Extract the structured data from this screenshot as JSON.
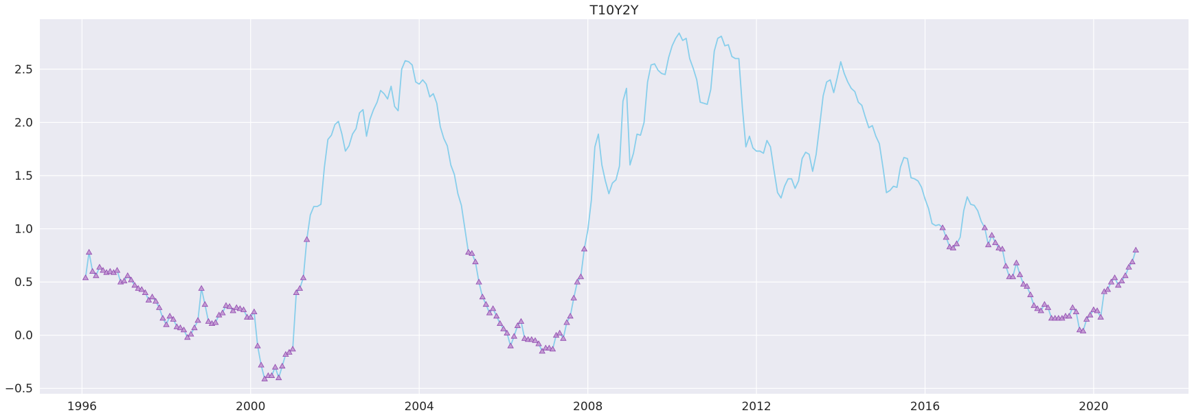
{
  "chart_data": {
    "type": "line",
    "title": "T10Y2Y",
    "xlabel": "",
    "ylabel": "",
    "x_axis": "date",
    "xlim": [
      "1995-01-01",
      "2022-04-01"
    ],
    "ylim": [
      -0.55,
      2.97
    ],
    "xticks": [
      "1996",
      "2000",
      "2004",
      "2008",
      "2012",
      "2016",
      "2020"
    ],
    "yticks": [
      "−0.5",
      "0.0",
      "0.5",
      "1.0",
      "1.5",
      "2.0",
      "2.5"
    ],
    "ytick_values": [
      -0.5,
      0.0,
      0.5,
      1.0,
      1.5,
      2.0,
      2.5
    ],
    "grid": true,
    "legend": "none",
    "line_color": "#87ceeb",
    "marker": "triangle",
    "marker_fill": "#c39bd3",
    "marker_edge": "#8e44ad",
    "background": "#eaeaf2",
    "series": [
      {
        "x": [
          "1996-02",
          "1996-03",
          "1996-04",
          "1996-05",
          "1996-06",
          "1996-07",
          "1996-08",
          "1996-09",
          "1996-10",
          "1996-11",
          "1996-12",
          "1997-01",
          "1997-02",
          "1997-03",
          "1997-04",
          "1997-05",
          "1997-06",
          "1997-07",
          "1997-08",
          "1997-09",
          "1997-10",
          "1997-11",
          "1997-12",
          "1998-01",
          "1998-02",
          "1998-03",
          "1998-04",
          "1998-05",
          "1998-06",
          "1998-07",
          "1998-08",
          "1998-09",
          "1998-10",
          "1998-11",
          "1998-12",
          "1999-01",
          "1999-02",
          "1999-03",
          "1999-04",
          "1999-05",
          "1999-06",
          "1999-07",
          "1999-08",
          "1999-09",
          "1999-10",
          "1999-11",
          "1999-12",
          "2000-01",
          "2000-02",
          "2000-03",
          "2000-04",
          "2000-05",
          "2000-06",
          "2000-07",
          "2000-08",
          "2000-09",
          "2000-10",
          "2000-11",
          "2000-12",
          "2001-01",
          "2001-02",
          "2001-03",
          "2001-04",
          "2001-05",
          "2001-06",
          "2001-07",
          "2001-08",
          "2001-09",
          "2001-10",
          "2001-11",
          "2001-12",
          "2002-01",
          "2002-02",
          "2002-03",
          "2002-04",
          "2002-05",
          "2002-06",
          "2002-07",
          "2002-08",
          "2002-09",
          "2002-10",
          "2002-11",
          "2002-12",
          "2003-01",
          "2003-02",
          "2003-03",
          "2003-04",
          "2003-05",
          "2003-06",
          "2003-07",
          "2003-08",
          "2003-09",
          "2003-10",
          "2003-11",
          "2003-12",
          "2004-01",
          "2004-02",
          "2004-03",
          "2004-04",
          "2004-05",
          "2004-06",
          "2004-07",
          "2004-08",
          "2004-09",
          "2004-10",
          "2004-11",
          "2004-12",
          "2005-01",
          "2005-02",
          "2005-03",
          "2005-04",
          "2005-05",
          "2005-06",
          "2005-07",
          "2005-08",
          "2005-09",
          "2005-10",
          "2005-11",
          "2005-12",
          "2006-01",
          "2006-02",
          "2006-03",
          "2006-04",
          "2006-05",
          "2006-06",
          "2006-07",
          "2006-08",
          "2006-09",
          "2006-10",
          "2006-11",
          "2006-12",
          "2007-01",
          "2007-02",
          "2007-03",
          "2007-04",
          "2007-05",
          "2007-06",
          "2007-07",
          "2007-08",
          "2007-09",
          "2007-10",
          "2007-11",
          "2007-12",
          "2008-01",
          "2008-02",
          "2008-03",
          "2008-04",
          "2008-05",
          "2008-06",
          "2008-07",
          "2008-08",
          "2008-09",
          "2008-10",
          "2008-11",
          "2008-12",
          "2009-01",
          "2009-02",
          "2009-03",
          "2009-04",
          "2009-05",
          "2009-06",
          "2009-07",
          "2009-08",
          "2009-09",
          "2009-10",
          "2009-11",
          "2009-12",
          "2010-01",
          "2010-02",
          "2010-03",
          "2010-04",
          "2010-05",
          "2010-06",
          "2010-07",
          "2010-08",
          "2010-09",
          "2010-10",
          "2010-11",
          "2010-12",
          "2011-01",
          "2011-02",
          "2011-03",
          "2011-04",
          "2011-05",
          "2011-06",
          "2011-07",
          "2011-08",
          "2011-09",
          "2011-10",
          "2011-11",
          "2011-12",
          "2012-01",
          "2012-02",
          "2012-03",
          "2012-04",
          "2012-05",
          "2012-06",
          "2012-07",
          "2012-08",
          "2012-09",
          "2012-10",
          "2012-11",
          "2012-12",
          "2013-01",
          "2013-02",
          "2013-03",
          "2013-04",
          "2013-05",
          "2013-06",
          "2013-07",
          "2013-08",
          "2013-09",
          "2013-10",
          "2013-11",
          "2013-12",
          "2014-01",
          "2014-02",
          "2014-03",
          "2014-04",
          "2014-05",
          "2014-06",
          "2014-07",
          "2014-08",
          "2014-09",
          "2014-10",
          "2014-11",
          "2014-12",
          "2015-01",
          "2015-02",
          "2015-03",
          "2015-04",
          "2015-05",
          "2015-06",
          "2015-07",
          "2015-08",
          "2015-09",
          "2015-10",
          "2015-11",
          "2015-12",
          "2016-01",
          "2016-02",
          "2016-03",
          "2016-04",
          "2016-05",
          "2016-06",
          "2016-07",
          "2016-08",
          "2016-09",
          "2016-10",
          "2016-11",
          "2016-12",
          "2017-01",
          "2017-02",
          "2017-03",
          "2017-04",
          "2017-05",
          "2017-06",
          "2017-07",
          "2017-08",
          "2017-09",
          "2017-10",
          "2017-11",
          "2017-12",
          "2018-01",
          "2018-02",
          "2018-03",
          "2018-04",
          "2018-05",
          "2018-06",
          "2018-07",
          "2018-08",
          "2018-09",
          "2018-10",
          "2018-11",
          "2018-12",
          "2019-01",
          "2019-02",
          "2019-03",
          "2019-04",
          "2019-05",
          "2019-06",
          "2019-07",
          "2019-08",
          "2019-09",
          "2019-10",
          "2019-11",
          "2019-12",
          "2020-01",
          "2020-02",
          "2020-03",
          "2020-04",
          "2020-05",
          "2020-06",
          "2020-07",
          "2020-08",
          "2020-09",
          "2020-10",
          "2020-11",
          "2020-12",
          "2021-01"
        ],
        "y": [
          0.54,
          0.78,
          0.6,
          0.56,
          0.64,
          0.61,
          0.59,
          0.6,
          0.59,
          0.61,
          0.5,
          0.51,
          0.56,
          0.52,
          0.47,
          0.44,
          0.43,
          0.4,
          0.33,
          0.36,
          0.32,
          0.26,
          0.16,
          0.1,
          0.18,
          0.15,
          0.08,
          0.07,
          0.05,
          -0.02,
          0.01,
          0.07,
          0.14,
          0.44,
          0.29,
          0.13,
          0.11,
          0.12,
          0.19,
          0.21,
          0.28,
          0.27,
          0.23,
          0.26,
          0.25,
          0.24,
          0.17,
          0.17,
          0.22,
          -0.1,
          -0.28,
          -0.41,
          -0.38,
          -0.38,
          -0.3,
          -0.4,
          -0.29,
          -0.18,
          -0.16,
          -0.13,
          0.4,
          0.44,
          0.54,
          0.9,
          1.13,
          1.21,
          1.21,
          1.23,
          1.58,
          1.84,
          1.88,
          1.98,
          2.01,
          1.89,
          1.73,
          1.78,
          1.89,
          1.94,
          2.09,
          2.12,
          1.87,
          2.03,
          2.12,
          2.19,
          2.3,
          2.27,
          2.22,
          2.34,
          2.15,
          2.11,
          2.5,
          2.58,
          2.57,
          2.54,
          2.38,
          2.36,
          2.4,
          2.36,
          2.24,
          2.27,
          2.18,
          1.96,
          1.85,
          1.78,
          1.6,
          1.51,
          1.33,
          1.22,
          1.0,
          0.78,
          0.77,
          0.69,
          0.5,
          0.36,
          0.29,
          0.21,
          0.25,
          0.18,
          0.11,
          0.06,
          0.02,
          -0.1,
          -0.01,
          0.09,
          0.13,
          -0.03,
          -0.04,
          -0.04,
          -0.05,
          -0.08,
          -0.15,
          -0.12,
          -0.12,
          -0.13,
          0.0,
          0.02,
          -0.03,
          0.12,
          0.18,
          0.35,
          0.5,
          0.55,
          0.81,
          0.99,
          1.27,
          1.77,
          1.89,
          1.6,
          1.45,
          1.33,
          1.43,
          1.46,
          1.59,
          2.2,
          2.32,
          1.6,
          1.71,
          1.89,
          1.88,
          2.0,
          2.38,
          2.54,
          2.55,
          2.49,
          2.46,
          2.45,
          2.61,
          2.72,
          2.79,
          2.84,
          2.77,
          2.79,
          2.6,
          2.51,
          2.4,
          2.19,
          2.18,
          2.17,
          2.31,
          2.67,
          2.79,
          2.81,
          2.72,
          2.73,
          2.62,
          2.6,
          2.6,
          2.14,
          1.77,
          1.87,
          1.76,
          1.73,
          1.73,
          1.71,
          1.83,
          1.77,
          1.55,
          1.34,
          1.29,
          1.4,
          1.47,
          1.47,
          1.38,
          1.45,
          1.66,
          1.72,
          1.7,
          1.54,
          1.7,
          1.97,
          2.25,
          2.38,
          2.4,
          2.28,
          2.42,
          2.57,
          2.46,
          2.38,
          2.32,
          2.29,
          2.19,
          2.16,
          2.05,
          1.95,
          1.97,
          1.87,
          1.8,
          1.58,
          1.34,
          1.36,
          1.4,
          1.39,
          1.58,
          1.67,
          1.66,
          1.48,
          1.47,
          1.45,
          1.39,
          1.28,
          1.19,
          1.05,
          1.03,
          1.04,
          1.01,
          0.92,
          0.83,
          0.82,
          0.86,
          0.92,
          1.17,
          1.3,
          1.23,
          1.22,
          1.17,
          1.07,
          1.01,
          0.85,
          0.94,
          0.87,
          0.82,
          0.81,
          0.65,
          0.55,
          0.55,
          0.68,
          0.57,
          0.48,
          0.46,
          0.38,
          0.28,
          0.25,
          0.23,
          0.29,
          0.26,
          0.16,
          0.16,
          0.16,
          0.16,
          0.18,
          0.18,
          0.26,
          0.22,
          0.05,
          0.04,
          0.15,
          0.19,
          0.24,
          0.23,
          0.17,
          0.41,
          0.43,
          0.5,
          0.54,
          0.47,
          0.51,
          0.56,
          0.64,
          0.69,
          0.8
        ],
        "markers": [
          true,
          true,
          true,
          true,
          true,
          true,
          true,
          true,
          true,
          true,
          true,
          true,
          true,
          true,
          true,
          true,
          true,
          true,
          true,
          true,
          true,
          true,
          true,
          true,
          true,
          true,
          true,
          true,
          true,
          true,
          true,
          true,
          true,
          true,
          true,
          true,
          true,
          true,
          true,
          true,
          true,
          true,
          true,
          true,
          true,
          true,
          true,
          true,
          true,
          true,
          true,
          true,
          true,
          true,
          true,
          true,
          true,
          true,
          true,
          true,
          true,
          true,
          true,
          true,
          false,
          false,
          false,
          false,
          false,
          false,
          false,
          false,
          false,
          false,
          false,
          false,
          false,
          false,
          false,
          false,
          false,
          false,
          false,
          false,
          false,
          false,
          false,
          false,
          false,
          false,
          false,
          false,
          false,
          false,
          false,
          false,
          false,
          false,
          false,
          false,
          false,
          false,
          false,
          false,
          false,
          false,
          false,
          false,
          false,
          true,
          true,
          true,
          true,
          true,
          true,
          true,
          true,
          true,
          true,
          true,
          true,
          true,
          true,
          true,
          true,
          true,
          true,
          true,
          true,
          true,
          true,
          true,
          true,
          true,
          true,
          true,
          true,
          true,
          true,
          true,
          true,
          true,
          true,
          false,
          false,
          false,
          false,
          false,
          false,
          false,
          false,
          false,
          false,
          false,
          false,
          false,
          false,
          false,
          false,
          false,
          false,
          false,
          false,
          false,
          false,
          false,
          false,
          false,
          false,
          false,
          false,
          false,
          false,
          false,
          false,
          false,
          false,
          false,
          false,
          false,
          false,
          false,
          false,
          false,
          false,
          false,
          false,
          false,
          false,
          false,
          false,
          false,
          false,
          false,
          false,
          false,
          false,
          false,
          false,
          false,
          false,
          false,
          false,
          false,
          false,
          false,
          false,
          false,
          false,
          false,
          false,
          false,
          false,
          false,
          false,
          false,
          false,
          false,
          false,
          false,
          false,
          false,
          false,
          false,
          false,
          false,
          false,
          false,
          false,
          false,
          false,
          false,
          false,
          false,
          false,
          false,
          false,
          false,
          false,
          false,
          false,
          false,
          false,
          false,
          true,
          true,
          true,
          true,
          true,
          false,
          false,
          false,
          false,
          false,
          false,
          false,
          true,
          true,
          true,
          true,
          true,
          true,
          true,
          true,
          true,
          true,
          true,
          true,
          true,
          true,
          true,
          true,
          true,
          true,
          true,
          true,
          true,
          true,
          true,
          true,
          true,
          true,
          true,
          true,
          true,
          true,
          true,
          true,
          true,
          true,
          true,
          true,
          true,
          true,
          true,
          true,
          true,
          true,
          true,
          true,
          true
        ]
      }
    ]
  }
}
